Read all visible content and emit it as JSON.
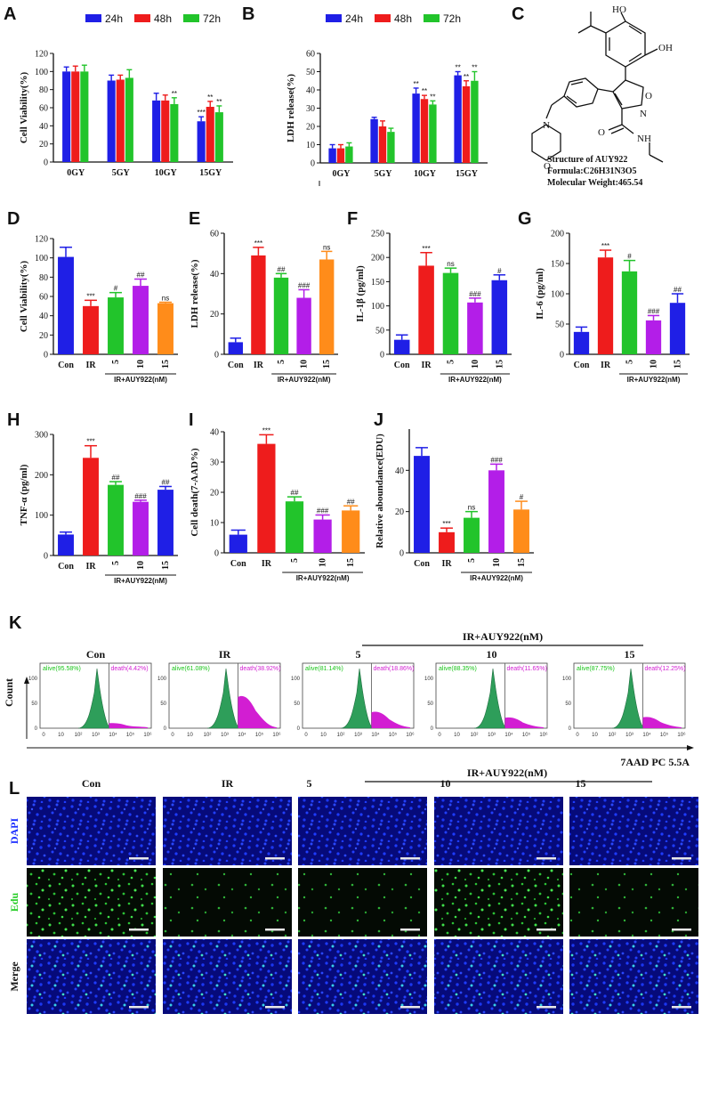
{
  "colors": {
    "blue": "#1f1fe6",
    "red": "#ee1c1c",
    "green": "#22c42b",
    "purple": "#b31ee8",
    "orange": "#ff8c1a",
    "flowGreen": "#2e9e5a",
    "flowMagenta": "#d21ed2",
    "gateGreen": "#19c419",
    "gateMagenta": "#d21ed2"
  },
  "panel_letters": [
    "A",
    "B",
    "C",
    "D",
    "E",
    "F",
    "G",
    "H",
    "I",
    "J",
    "K",
    "L"
  ],
  "chart_data": [
    {
      "id": "A",
      "type": "bar",
      "title": "",
      "ylabel": "Cell Viability(%)",
      "ylim": [
        0,
        120
      ],
      "yticks": [
        0,
        20,
        40,
        60,
        80,
        100,
        120
      ],
      "categories": [
        "0GY",
        "5GY",
        "10GY",
        "15GY"
      ],
      "series": [
        {
          "name": "24h",
          "values": [
            100,
            90,
            68,
            45
          ],
          "errors": [
            5,
            6,
            8,
            5
          ],
          "labels": [
            "",
            "",
            "",
            "***"
          ]
        },
        {
          "name": "48h",
          "values": [
            100,
            91,
            68,
            61
          ],
          "errors": [
            6,
            5,
            6,
            6
          ],
          "labels": [
            "",
            "",
            "",
            "**"
          ]
        },
        {
          "name": "72h",
          "values": [
            100,
            93,
            64,
            55
          ],
          "errors": [
            7,
            9,
            7,
            7
          ],
          "labels": [
            "",
            "",
            "**",
            "**"
          ]
        }
      ],
      "legend": [
        "24h",
        "48h",
        "72h"
      ]
    },
    {
      "id": "B",
      "type": "bar",
      "title": "",
      "ylabel": "LDH release(%)",
      "ylim": [
        0,
        60
      ],
      "yticks": [
        0,
        10,
        20,
        30,
        40,
        50,
        60
      ],
      "categories": [
        "0GY",
        "5GY",
        "10GY",
        "15GY"
      ],
      "series": [
        {
          "name": "24h",
          "values": [
            8,
            24,
            38,
            48
          ],
          "errors": [
            2,
            1,
            3,
            2
          ],
          "labels": [
            "",
            "",
            "**",
            "**"
          ]
        },
        {
          "name": "48h",
          "values": [
            8,
            20,
            35,
            42
          ],
          "errors": [
            2,
            3,
            2,
            3
          ],
          "labels": [
            "",
            "",
            "**",
            "**"
          ]
        },
        {
          "name": "72h",
          "values": [
            9,
            17,
            32,
            45
          ],
          "errors": [
            2,
            2,
            2,
            5
          ],
          "labels": [
            "",
            "",
            "**",
            "**"
          ]
        }
      ],
      "legend": [
        "24h",
        "48h",
        "72h"
      ]
    },
    {
      "id": "D",
      "type": "bar",
      "ylabel": "Cell Viability(%)",
      "ylim": [
        0,
        120
      ],
      "yticks": [
        0,
        20,
        40,
        60,
        80,
        100,
        120
      ],
      "categories": [
        "Con",
        "IR",
        "5",
        "10",
        "15"
      ],
      "values": [
        101,
        50,
        59,
        71,
        53
      ],
      "errors": [
        10,
        6,
        5,
        7,
        1
      ],
      "labels": [
        "",
        "***",
        "#",
        "##",
        "ns"
      ],
      "colors": [
        "blue",
        "red",
        "green",
        "purple",
        "orange"
      ],
      "group_label": "IR+AUY922(nM)"
    },
    {
      "id": "E",
      "type": "bar",
      "ylabel": "LDH release(%)",
      "ylim": [
        0,
        60
      ],
      "yticks": [
        0,
        20,
        40,
        60
      ],
      "categories": [
        "Con",
        "IR",
        "5",
        "10",
        "15"
      ],
      "values": [
        6,
        49,
        38,
        28,
        47
      ],
      "errors": [
        2,
        4,
        2,
        4,
        4
      ],
      "labels": [
        "",
        "***",
        "##",
        "###",
        "ns"
      ],
      "colors": [
        "blue",
        "red",
        "green",
        "purple",
        "orange"
      ],
      "group_label": "IR+AUY922(nM)"
    },
    {
      "id": "F",
      "type": "bar",
      "ylabel": "IL-1β (pg/ml)",
      "ylim": [
        0,
        250
      ],
      "yticks": [
        0,
        50,
        100,
        150,
        200,
        250
      ],
      "categories": [
        "Con",
        "IR",
        "5",
        "10",
        "15"
      ],
      "values": [
        30,
        183,
        168,
        107,
        153
      ],
      "errors": [
        10,
        27,
        10,
        9,
        11
      ],
      "labels": [
        "",
        "***",
        "ns",
        "###",
        "#"
      ],
      "colors": [
        "blue",
        "red",
        "green",
        "purple",
        "blue"
      ],
      "group_label": "IR+AUY922(nM)"
    },
    {
      "id": "G",
      "type": "bar",
      "ylabel": "IL-6 (pg/ml)",
      "ylim": [
        0,
        200
      ],
      "yticks": [
        0,
        50,
        100,
        150,
        200
      ],
      "categories": [
        "Con",
        "IR",
        "5",
        "10",
        "15"
      ],
      "values": [
        37,
        160,
        137,
        56,
        85
      ],
      "errors": [
        8,
        12,
        18,
        8,
        15
      ],
      "labels": [
        "",
        "***",
        "#",
        "###",
        "##"
      ],
      "colors": [
        "blue",
        "red",
        "green",
        "purple",
        "blue"
      ],
      "group_label": "IR+AUY922(nM)"
    },
    {
      "id": "H",
      "type": "bar",
      "ylabel": "TNF-α (pg/ml)",
      "ylim": [
        0,
        300
      ],
      "yticks": [
        0,
        100,
        200,
        300
      ],
      "categories": [
        "Con",
        "IR",
        "5",
        "10",
        "15"
      ],
      "values": [
        52,
        242,
        175,
        133,
        163
      ],
      "errors": [
        6,
        30,
        8,
        4,
        8
      ],
      "labels": [
        "",
        "***",
        "##",
        "###",
        "##"
      ],
      "colors": [
        "blue",
        "red",
        "green",
        "purple",
        "blue"
      ],
      "group_label": "IR+AUY922(nM)"
    },
    {
      "id": "I",
      "type": "bar",
      "ylabel": "Cell death(7-AAD%)",
      "ylim": [
        0,
        40
      ],
      "yticks": [
        0,
        10,
        20,
        30,
        40
      ],
      "categories": [
        "Con",
        "IR",
        "5",
        "10",
        "15"
      ],
      "values": [
        6,
        36,
        17,
        11,
        14
      ],
      "errors": [
        1.5,
        3,
        1.5,
        1.5,
        1.5
      ],
      "labels": [
        "",
        "***",
        "##",
        "###",
        "##"
      ],
      "colors": [
        "blue",
        "red",
        "green",
        "purple",
        "orange"
      ],
      "group_label": "IR+AUY922(nM)"
    },
    {
      "id": "J",
      "type": "bar",
      "ylabel": "Relative aboundance(EDU)",
      "ylim": [
        0,
        60
      ],
      "yticks": [
        0,
        20,
        40
      ],
      "categories": [
        "Con",
        "IR",
        "5",
        "10",
        "15"
      ],
      "values": [
        47,
        10,
        17,
        40,
        21
      ],
      "errors": [
        4,
        2,
        3,
        3,
        4
      ],
      "labels": [
        "",
        "***",
        "ns",
        "###",
        "#"
      ],
      "colors": [
        "blue",
        "red",
        "green",
        "purple",
        "orange"
      ],
      "group_label": "IR+AUY922(nM)"
    }
  ],
  "legend_labels": [
    "24h",
    "48h",
    "72h"
  ],
  "structure": {
    "atoms": [
      "HO",
      "OH",
      "O",
      "N",
      "O",
      "NH",
      "N"
    ],
    "caption": [
      "Structure of AUY922",
      "Formula:C26H31N3O5",
      "Molecular Weight:465.54"
    ]
  },
  "flow": {
    "group_header": "IR+AUY922(nM)",
    "y_axis_label": "Count",
    "x_axis_label": "7AAD PC 5.5A",
    "yticks": [
      "0",
      "50",
      "100"
    ],
    "xticks": [
      "0",
      "10",
      "10²",
      "10³",
      "10⁴",
      "10⁵",
      "10⁶"
    ],
    "panels": [
      {
        "title": "Con",
        "alive": "alive(95.58%)",
        "death": "death(4.42%)",
        "death_pct": 4.42
      },
      {
        "title": "IR",
        "alive": "alive(61.08%)",
        "death": "death(38.92%)",
        "death_pct": 38.92
      },
      {
        "title": "5",
        "alive": "alive(81.14%)",
        "death": "death(18.86%)",
        "death_pct": 18.86
      },
      {
        "title": "10",
        "alive": "alive(88.35%)",
        "death": "death(11.65%)",
        "death_pct": 11.65
      },
      {
        "title": "15",
        "alive": "alive(87.75%)",
        "death": "death(12.25%)",
        "death_pct": 12.25
      }
    ]
  },
  "microscopy": {
    "group_header": "IR+AUY922(nM)",
    "columns": [
      "Con",
      "IR",
      "5",
      "10",
      "15"
    ],
    "rows": [
      "DAPI",
      "Edu",
      "Merge"
    ],
    "edu_density": [
      0.7,
      0.35,
      0.35,
      0.6,
      0.3
    ]
  }
}
